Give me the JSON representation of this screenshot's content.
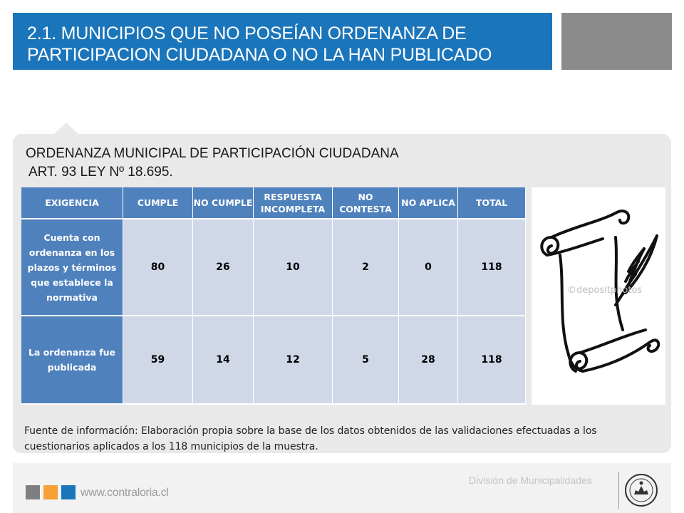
{
  "header": {
    "title_line1": "2.1. MUNICIPIOS QUE NO POSEÍAN ORDENANZA DE",
    "title_line2": "PARTICIPACION CIUDADANA O NO LA HAN PUBLICADO"
  },
  "subtitle": {
    "line1": "ORDENANZA MUNICIPAL DE PARTICIPACIÓN CIUDADANA",
    "line2": "ART. 93  LEY Nº 18.695."
  },
  "table": {
    "headers": [
      "EXIGENCIA",
      "CUMPLE",
      "NO CUMPLE",
      "RESPUESTA INCOMPLETA",
      "NO CONTESTA",
      "NO APLICA",
      "TOTAL"
    ],
    "rows": [
      {
        "label": "Cuenta con ordenanza en los plazos y términos que establece la normativa",
        "values": [
          "80",
          "26",
          "10",
          "2",
          "0",
          "118"
        ]
      },
      {
        "label": "La ordenanza fue publicada",
        "values": [
          "59",
          "14",
          "12",
          "5",
          "28",
          "118"
        ]
      }
    ]
  },
  "image": {
    "icon": "scroll-quill-icon",
    "watermark": "©depositphotos"
  },
  "source": "Fuente de información: Elaboración propia sobre la base de los datos obtenidos de las validaciones efectuadas a los cuestionarios aplicados a los 118 municipios de la muestra.",
  "footer": {
    "website": "www.contraloria.cl",
    "division": "División de Municipalidades",
    "seal_icon": "contraloria-seal-icon"
  },
  "colors": {
    "title_bg": "#1b75bb",
    "header_cell": "#4f81bd",
    "data_cell": "#d0d8e8",
    "grey_block": "#8b8b8b",
    "accent_orange": "#f7a035"
  }
}
